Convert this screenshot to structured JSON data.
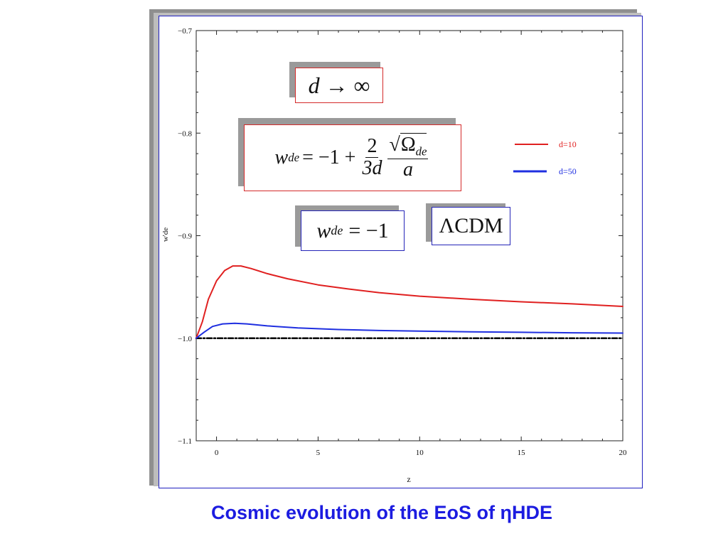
{
  "caption": "Cosmic evolution of the EoS of ηHDE",
  "colors": {
    "d10": "#e02020",
    "d50": "#1f2fe0",
    "lcdm": "#000000",
    "caption": "#1c1ce0"
  },
  "annotations": {
    "limit": {
      "d": "d",
      "arrow": "→",
      "inf": "∞"
    },
    "formula": {
      "w": "w",
      "sub": "de",
      "eq": "= −1 +",
      "num": "2",
      "den": "3d",
      "sqrt": "√",
      "omega": "Ω",
      "omega_sub": "de",
      "a": "a"
    },
    "wde_minus1": {
      "w": "w",
      "sub": "de",
      "rhs": "= −1"
    },
    "lcdm": "ΛCDM"
  },
  "chart_data": {
    "type": "line",
    "xlabel": "z",
    "ylabel": "w'de",
    "xlim": [
      -1,
      20
    ],
    "ylim": [
      -1.1,
      -0.7
    ],
    "x_ticks": [
      0,
      5,
      10,
      15,
      20
    ],
    "x_tick_labels": [
      "0",
      "5",
      "10",
      "15",
      "20"
    ],
    "y_ticks": [
      -1.1,
      -1.0,
      -0.9,
      -0.8,
      -0.7
    ],
    "y_tick_labels": [
      "−1.1",
      "−1.0",
      "−0.9",
      "−0.8",
      "−0.7"
    ],
    "legend_position": "top-right",
    "grid": false,
    "series": [
      {
        "name": "d=10",
        "points": [
          [
            -1,
            -1.0
          ],
          [
            -0.7,
            -0.984
          ],
          [
            -0.4,
            -0.962
          ],
          [
            0,
            -0.944
          ],
          [
            0.4,
            -0.934
          ],
          [
            0.8,
            -0.9295
          ],
          [
            1.2,
            -0.9295
          ],
          [
            1.7,
            -0.932
          ],
          [
            2.5,
            -0.937
          ],
          [
            3.5,
            -0.942
          ],
          [
            5,
            -0.948
          ],
          [
            6.5,
            -0.952
          ],
          [
            8,
            -0.9555
          ],
          [
            10,
            -0.959
          ],
          [
            12.5,
            -0.962
          ],
          [
            15,
            -0.9645
          ],
          [
            17.5,
            -0.9665
          ],
          [
            20,
            -0.969
          ]
        ]
      },
      {
        "name": "d=50",
        "points": [
          [
            -1,
            -1.0
          ],
          [
            -0.6,
            -0.994
          ],
          [
            -0.2,
            -0.9885
          ],
          [
            0.3,
            -0.986
          ],
          [
            0.9,
            -0.9855
          ],
          [
            1.5,
            -0.986
          ],
          [
            2.5,
            -0.988
          ],
          [
            4,
            -0.99
          ],
          [
            6,
            -0.9915
          ],
          [
            8,
            -0.9925
          ],
          [
            10,
            -0.993
          ],
          [
            12.5,
            -0.9937
          ],
          [
            15,
            -0.9942
          ],
          [
            17.5,
            -0.9947
          ],
          [
            20,
            -0.995
          ]
        ]
      },
      {
        "name": "ΛCDM",
        "style": "dash-dot",
        "points": [
          [
            -1,
            -1.0
          ],
          [
            20,
            -1.0
          ]
        ]
      }
    ]
  }
}
